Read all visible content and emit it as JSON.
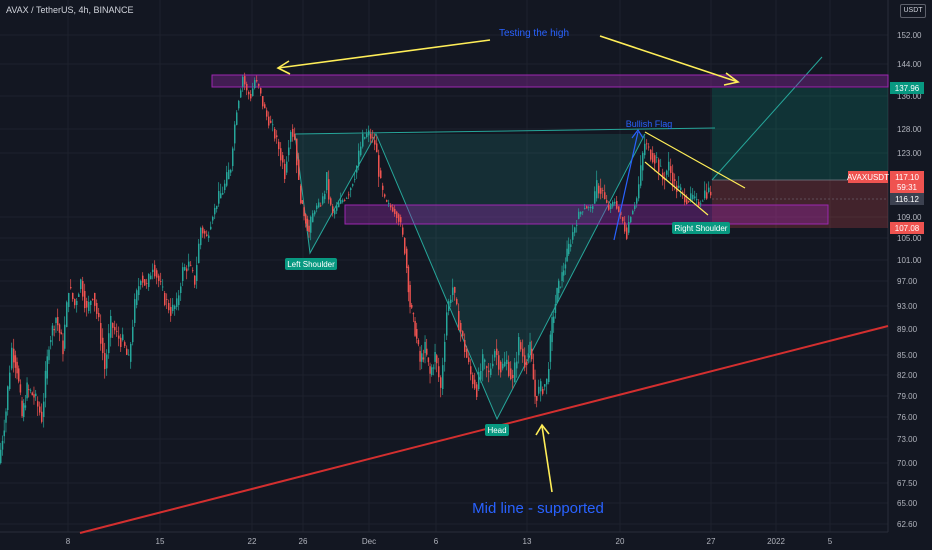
{
  "header": {
    "title": "AVAX / TetherUS, 4h, BINANCE",
    "currency": "USDT"
  },
  "colors": {
    "bg": "#131722",
    "up": "#26a69a",
    "down": "#ef5350",
    "grid": "#1e222d",
    "trend": "#d32f2f",
    "yellow": "#ffee58",
    "purple": "#9c27b0",
    "accent_blue": "#2962ff"
  },
  "chart_data": {
    "type": "candlestick",
    "symbol": "AVAXUSDT",
    "y_ticks": [
      "152.00",
      "144.00",
      "136.00",
      "128.00",
      "123.00",
      "109.00",
      "105.00",
      "101.00",
      "97.00",
      "93.00",
      "89.00",
      "85.00",
      "82.00",
      "79.00",
      "76.00",
      "73.00",
      "70.00",
      "67.50",
      "65.00",
      "62.60"
    ],
    "x_ticks": [
      "8",
      "15",
      "22",
      "26",
      "Dec",
      "6",
      "13",
      "20",
      "27",
      "2022",
      "5"
    ],
    "price_labels": [
      {
        "text": "137.96",
        "color": "#089981"
      },
      {
        "text": "AVAXUSDT",
        "color": "#ef5350"
      },
      {
        "text": "117.10",
        "color": "#ef5350"
      },
      {
        "text": "59:31",
        "color": "#ef5350"
      },
      {
        "text": "116.12",
        "color": "#3c4150"
      },
      {
        "text": "107.08",
        "color": "#ef5350"
      }
    ],
    "series": [
      {
        "name": "AVAXUSDT",
        "path": [
          [
            0,
            70
          ],
          [
            7,
            77
          ],
          [
            13,
            86
          ],
          [
            18,
            83
          ],
          [
            23,
            76
          ],
          [
            28,
            80
          ],
          [
            35,
            79
          ],
          [
            43,
            76
          ],
          [
            50,
            87
          ],
          [
            57,
            91
          ],
          [
            64,
            86
          ],
          [
            70,
            96
          ],
          [
            76,
            93
          ],
          [
            82,
            97
          ],
          [
            88,
            92
          ],
          [
            94,
            95
          ],
          [
            100,
            90
          ],
          [
            106,
            83
          ],
          [
            112,
            90
          ],
          [
            118,
            88
          ],
          [
            124,
            87
          ],
          [
            130,
            84
          ],
          [
            136,
            93
          ],
          [
            142,
            98
          ],
          [
            148,
            96
          ],
          [
            154,
            100
          ],
          [
            160,
            97
          ],
          [
            166,
            94
          ],
          [
            172,
            92
          ],
          [
            178,
            93
          ],
          [
            184,
            99
          ],
          [
            190,
            100
          ],
          [
            196,
            97
          ],
          [
            202,
            107
          ],
          [
            208,
            105
          ],
          [
            214,
            110
          ],
          [
            220,
            116
          ],
          [
            226,
            118
          ],
          [
            232,
            121
          ],
          [
            238,
            133
          ],
          [
            244,
            141
          ],
          [
            248,
            137
          ],
          [
            252,
            136
          ],
          [
            256,
            140
          ],
          [
            260,
            138
          ],
          [
            264,
            134
          ],
          [
            268,
            131
          ],
          [
            274,
            128
          ],
          [
            280,
            124
          ],
          [
            286,
            120
          ],
          [
            292,
            128
          ],
          [
            296,
            126
          ],
          [
            300,
            118
          ],
          [
            305,
            110
          ],
          [
            310,
            106
          ],
          [
            316,
            112
          ],
          [
            322,
            114
          ],
          [
            328,
            119
          ],
          [
            334,
            110
          ],
          [
            340,
            114
          ],
          [
            346,
            116
          ],
          [
            352,
            118
          ],
          [
            358,
            121
          ],
          [
            364,
            126
          ],
          [
            370,
            127
          ],
          [
            376,
            125
          ],
          [
            382,
            118
          ],
          [
            388,
            114
          ],
          [
            394,
            112
          ],
          [
            400,
            109
          ],
          [
            406,
            103
          ],
          [
            411,
            93
          ],
          [
            416,
            89
          ],
          [
            421,
            84
          ],
          [
            426,
            86
          ],
          [
            431,
            82
          ],
          [
            436,
            85
          ],
          [
            442,
            80
          ],
          [
            448,
            92
          ],
          [
            454,
            96
          ],
          [
            460,
            90
          ],
          [
            466,
            86
          ],
          [
            472,
            82
          ],
          [
            478,
            80
          ],
          [
            484,
            84
          ],
          [
            490,
            82
          ],
          [
            496,
            86
          ],
          [
            502,
            83
          ],
          [
            508,
            84
          ],
          [
            514,
            81
          ],
          [
            520,
            87
          ],
          [
            526,
            84
          ],
          [
            531,
            86
          ],
          [
            536,
            79
          ],
          [
            542,
            80
          ],
          [
            548,
            81
          ],
          [
            553,
            90
          ],
          [
            558,
            95
          ],
          [
            563,
            98
          ],
          [
            568,
            102
          ],
          [
            574,
            106
          ],
          [
            580,
            110
          ],
          [
            586,
            113
          ],
          [
            592,
            112
          ],
          [
            598,
            118
          ],
          [
            604,
            117
          ],
          [
            610,
            112
          ],
          [
            616,
            115
          ],
          [
            622,
            109
          ],
          [
            628,
            106
          ],
          [
            634,
            112
          ],
          [
            640,
            118
          ],
          [
            646,
            125
          ],
          [
            652,
            123
          ],
          [
            658,
            122
          ],
          [
            664,
            119
          ],
          [
            670,
            121
          ],
          [
            676,
            118
          ],
          [
            682,
            117
          ],
          [
            688,
            115
          ],
          [
            694,
            116
          ],
          [
            700,
            114
          ],
          [
            706,
            117
          ],
          [
            712,
            117.1
          ]
        ]
      }
    ]
  },
  "annotations": {
    "testing_the_high": "Testing the high",
    "bullish_flag": "Bullish Flag",
    "left_shoulder": "Left Shoulder",
    "head": "Head",
    "right_shoulder": "Right Shoulder",
    "mid_line": "Mid line - supported"
  }
}
